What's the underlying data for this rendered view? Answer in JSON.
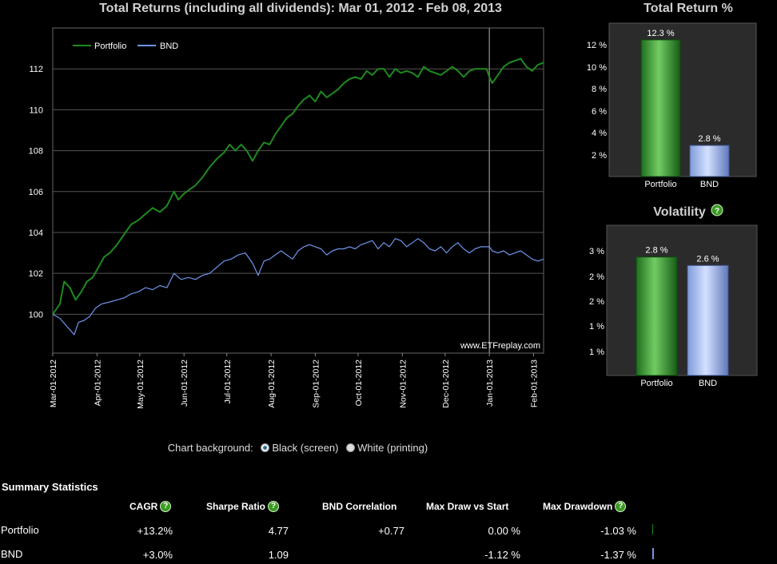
{
  "main_chart": {
    "title": "Total Returns (including all dividends): Mar 01, 2012 - Feb 08, 2013",
    "watermark": "www.ETFreplay.com",
    "legend": [
      {
        "name": "Portfolio",
        "color": "#1e8a1e"
      },
      {
        "name": "BND",
        "color": "#6f95ea"
      }
    ],
    "y_ticks": [
      "100",
      "102",
      "104",
      "106",
      "108",
      "110",
      "112"
    ],
    "x_ticks": [
      "Mar-01-2012",
      "Apr-01-2012",
      "May-01-2012",
      "Jun-01-2012",
      "Jul-01-2012",
      "Aug-01-2012",
      "Sep-01-2012",
      "Oct-01-2012",
      "Nov-01-2012",
      "Dec-01-2012",
      "Jan-01-2013",
      "Feb-01-2013"
    ]
  },
  "chart_data": [
    {
      "type": "line",
      "title": "Total Returns (including all dividends): Mar 01, 2012 - Feb 08, 2013",
      "xlabel": "",
      "ylabel": "",
      "x_range": [
        0,
        344
      ],
      "ylim": [
        98.1,
        114.0
      ],
      "grid": true,
      "legend": "top-left",
      "x_ticks": [
        0,
        31,
        61,
        92,
        122,
        153,
        184,
        214,
        245,
        275,
        306,
        337
      ],
      "marker_x": 306,
      "series": [
        {
          "name": "Portfolio",
          "color": "#1e8a1e",
          "points": [
            [
              0,
              100
            ],
            [
              5,
              100.5
            ],
            [
              8,
              101.6
            ],
            [
              12,
              101.3
            ],
            [
              16,
              100.7
            ],
            [
              20,
              101.1
            ],
            [
              24,
              101.6
            ],
            [
              28,
              101.8
            ],
            [
              32,
              102.3
            ],
            [
              36,
              102.8
            ],
            [
              40,
              103.0
            ],
            [
              45,
              103.4
            ],
            [
              50,
              103.9
            ],
            [
              55,
              104.4
            ],
            [
              60,
              104.6
            ],
            [
              65,
              104.9
            ],
            [
              70,
              105.2
            ],
            [
              75,
              105.0
            ],
            [
              80,
              105.3
            ],
            [
              85,
              106.0
            ],
            [
              88,
              105.6
            ],
            [
              92,
              105.9
            ],
            [
              96,
              106.1
            ],
            [
              100,
              106.3
            ],
            [
              105,
              106.7
            ],
            [
              110,
              107.2
            ],
            [
              115,
              107.6
            ],
            [
              120,
              107.9
            ],
            [
              124,
              108.3
            ],
            [
              128,
              108.0
            ],
            [
              132,
              108.3
            ],
            [
              136,
              108.0
            ],
            [
              140,
              107.5
            ],
            [
              144,
              108.0
            ],
            [
              148,
              108.4
            ],
            [
              152,
              108.3
            ],
            [
              156,
              108.8
            ],
            [
              160,
              109.2
            ],
            [
              164,
              109.6
            ],
            [
              168,
              109.8
            ],
            [
              172,
              110.2
            ],
            [
              176,
              110.5
            ],
            [
              180,
              110.7
            ],
            [
              184,
              110.4
            ],
            [
              188,
              110.9
            ],
            [
              192,
              110.6
            ],
            [
              196,
              110.8
            ],
            [
              200,
              111.0
            ],
            [
              204,
              111.3
            ],
            [
              208,
              111.5
            ],
            [
              212,
              111.6
            ],
            [
              216,
              111.5
            ],
            [
              220,
              111.9
            ],
            [
              224,
              111.7
            ],
            [
              228,
              112.0
            ],
            [
              232,
              112.0
            ],
            [
              236,
              111.6
            ],
            [
              240,
              112.0
            ],
            [
              244,
              111.8
            ],
            [
              248,
              111.9
            ],
            [
              252,
              111.8
            ],
            [
              256,
              111.6
            ],
            [
              260,
              112.1
            ],
            [
              264,
              111.9
            ],
            [
              268,
              111.8
            ],
            [
              272,
              111.7
            ],
            [
              276,
              111.9
            ],
            [
              280,
              112.1
            ],
            [
              284,
              111.9
            ],
            [
              288,
              111.6
            ],
            [
              292,
              111.9
            ],
            [
              296,
              112.0
            ],
            [
              300,
              112.0
            ],
            [
              304,
              112.0
            ],
            [
              306,
              111.6
            ],
            [
              308,
              111.3
            ],
            [
              312,
              111.7
            ],
            [
              316,
              112.1
            ],
            [
              320,
              112.3
            ],
            [
              324,
              112.4
            ],
            [
              328,
              112.5
            ],
            [
              332,
              112.1
            ],
            [
              336,
              111.9
            ],
            [
              340,
              112.2
            ],
            [
              344,
              112.3
            ]
          ]
        },
        {
          "name": "BND",
          "color": "#6f95ea",
          "points": [
            [
              0,
              100
            ],
            [
              5,
              99.8
            ],
            [
              10,
              99.4
            ],
            [
              15,
              99.0
            ],
            [
              18,
              99.6
            ],
            [
              22,
              99.7
            ],
            [
              26,
              99.9
            ],
            [
              30,
              100.3
            ],
            [
              34,
              100.5
            ],
            [
              40,
              100.6
            ],
            [
              45,
              100.7
            ],
            [
              50,
              100.8
            ],
            [
              55,
              101.0
            ],
            [
              60,
              101.1
            ],
            [
              65,
              101.3
            ],
            [
              70,
              101.2
            ],
            [
              75,
              101.4
            ],
            [
              80,
              101.3
            ],
            [
              85,
              102.0
            ],
            [
              90,
              101.7
            ],
            [
              95,
              101.8
            ],
            [
              100,
              101.7
            ],
            [
              105,
              101.9
            ],
            [
              110,
              102.0
            ],
            [
              115,
              102.3
            ],
            [
              120,
              102.6
            ],
            [
              125,
              102.7
            ],
            [
              130,
              102.9
            ],
            [
              135,
              103.0
            ],
            [
              140,
              102.5
            ],
            [
              144,
              101.9
            ],
            [
              148,
              102.6
            ],
            [
              152,
              102.7
            ],
            [
              156,
              102.9
            ],
            [
              160,
              103.1
            ],
            [
              164,
              102.9
            ],
            [
              168,
              102.7
            ],
            [
              172,
              103.1
            ],
            [
              176,
              103.3
            ],
            [
              180,
              103.4
            ],
            [
              184,
              103.3
            ],
            [
              188,
              103.2
            ],
            [
              192,
              102.9
            ],
            [
              196,
              103.1
            ],
            [
              200,
              103.2
            ],
            [
              204,
              103.2
            ],
            [
              208,
              103.3
            ],
            [
              212,
              103.2
            ],
            [
              216,
              103.4
            ],
            [
              220,
              103.5
            ],
            [
              224,
              103.6
            ],
            [
              228,
              103.2
            ],
            [
              232,
              103.5
            ],
            [
              236,
              103.3
            ],
            [
              240,
              103.7
            ],
            [
              244,
              103.6
            ],
            [
              248,
              103.3
            ],
            [
              252,
              103.5
            ],
            [
              256,
              103.7
            ],
            [
              260,
              103.5
            ],
            [
              264,
              103.2
            ],
            [
              268,
              103.1
            ],
            [
              272,
              103.3
            ],
            [
              276,
              103.0
            ],
            [
              280,
              103.3
            ],
            [
              284,
              103.5
            ],
            [
              288,
              103.2
            ],
            [
              292,
              103.0
            ],
            [
              296,
              103.2
            ],
            [
              300,
              103.3
            ],
            [
              304,
              103.3
            ],
            [
              306,
              103.3
            ],
            [
              308,
              103.1
            ],
            [
              312,
              103.0
            ],
            [
              316,
              103.1
            ],
            [
              320,
              102.9
            ],
            [
              324,
              103.0
            ],
            [
              328,
              103.1
            ],
            [
              332,
              102.9
            ],
            [
              336,
              102.7
            ],
            [
              340,
              102.6
            ],
            [
              344,
              102.7
            ]
          ]
        }
      ]
    },
    {
      "type": "bar",
      "title": "Total Return %",
      "categories": [
        "Portfolio",
        "BND"
      ],
      "values": [
        12.3,
        2.8
      ],
      "labels": [
        "12.3 %",
        "2.8 %"
      ],
      "y_ticks": [
        "2 %",
        "4 %",
        "6 %",
        "8 %",
        "10 %",
        "12 %"
      ],
      "ylim": [
        0,
        13.8
      ]
    },
    {
      "type": "bar",
      "title": "Volatility",
      "categories": [
        "Portfolio",
        "BND"
      ],
      "values": [
        2.8,
        2.6
      ],
      "labels": [
        "2.8 %",
        "2.6 %"
      ],
      "y_ticks": [
        "1 %",
        "1 %",
        "2 %",
        "2 %",
        "3 %"
      ],
      "ylim": [
        0,
        3.55
      ]
    }
  ],
  "controls": {
    "background_label": "Chart background:",
    "option_black": "Black (screen)",
    "option_white": "White (printing)"
  },
  "stats": {
    "title": "Summary Statistics",
    "headers": [
      "CAGR",
      "Sharpe Ratio",
      "BND Correlation",
      "Max Draw vs Start",
      "Max Drawdown"
    ],
    "help_glyph": "?",
    "rows": [
      {
        "name": "Portfolio",
        "cagr": "+13.2%",
        "sharpe": "4.77",
        "corr": "+0.77",
        "mdvs": "0.00 %",
        "mdd": "-1.03 %",
        "color": "#1e8a1e"
      },
      {
        "name": "BND",
        "cagr": "+3.0%",
        "sharpe": "1.09",
        "corr": "",
        "mdvs": "-1.12 %",
        "mdd": "-1.37 %",
        "color": "#6f95ea"
      }
    ]
  },
  "colors": {
    "plot_bg": "#000000",
    "panel_bg": "#2b2b2b",
    "grid": "#555555",
    "text": "#ffffff"
  }
}
